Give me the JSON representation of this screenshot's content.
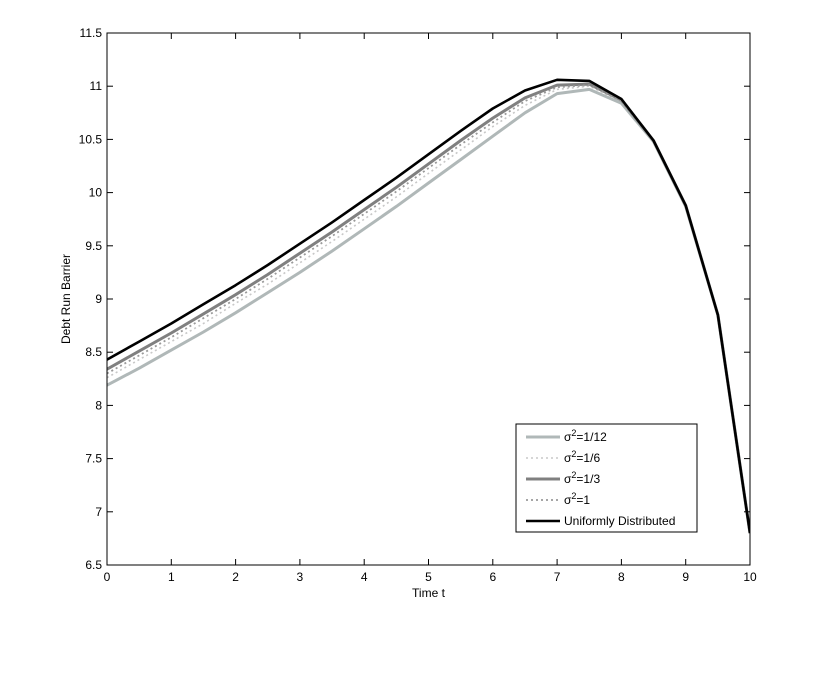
{
  "chart_data": {
    "type": "line",
    "title": "",
    "xlabel": "Time t",
    "ylabel": "Debt Run Barrier",
    "xlim": [
      0,
      10
    ],
    "ylim": [
      6.5,
      11.5
    ],
    "xticks": [
      "0",
      "1",
      "2",
      "3",
      "4",
      "5",
      "6",
      "7",
      "8",
      "9",
      "10"
    ],
    "yticks": [
      "6.5",
      "7",
      "7.5",
      "8",
      "8.5",
      "9",
      "9.5",
      "10",
      "10.5",
      "11",
      "11.5"
    ],
    "grid": false,
    "legend_position": "lower-right",
    "series": [
      {
        "name": "σ²=1/12",
        "legend_base": "σ",
        "legend_sup": "2",
        "legend_rest": "=1/12",
        "color": "#b0b8b8",
        "dash": "solid",
        "x": [
          0,
          0.5,
          1,
          1.5,
          2,
          2.5,
          3,
          3.5,
          4,
          4.5,
          5,
          5.5,
          6,
          6.5,
          7,
          7.5,
          8,
          8.5,
          9,
          9.5,
          10
        ],
        "y": [
          8.19,
          8.35,
          8.52,
          8.69,
          8.87,
          9.06,
          9.25,
          9.45,
          9.66,
          9.87,
          10.09,
          10.31,
          10.53,
          10.75,
          10.93,
          10.97,
          10.84,
          10.48,
          9.87,
          8.85,
          6.8
        ]
      },
      {
        "name": "σ²=1/6",
        "legend_base": "σ",
        "legend_sup": "2",
        "legend_rest": "=1/6",
        "color": "#c8c8c8",
        "dash": "dotted",
        "x": [
          0,
          0.5,
          1,
          1.5,
          2,
          2.5,
          3,
          3.5,
          4,
          4.5,
          5,
          5.5,
          6,
          6.5,
          7,
          7.5,
          8,
          8.5,
          9,
          9.5,
          10
        ],
        "y": [
          8.26,
          8.43,
          8.6,
          8.77,
          8.96,
          9.14,
          9.34,
          9.54,
          9.75,
          9.96,
          10.18,
          10.4,
          10.62,
          10.82,
          10.97,
          11.0,
          10.86,
          10.49,
          9.88,
          8.85,
          6.8
        ]
      },
      {
        "name": "σ²=1/3",
        "legend_base": "σ",
        "legend_sup": "2",
        "legend_rest": "=1/3",
        "color": "#808080",
        "dash": "solid",
        "x": [
          0,
          0.5,
          1,
          1.5,
          2,
          2.5,
          3,
          3.5,
          4,
          4.5,
          5,
          5.5,
          6,
          6.5,
          7,
          7.5,
          8,
          8.5,
          9,
          9.5,
          10
        ],
        "y": [
          8.34,
          8.51,
          8.68,
          8.86,
          9.04,
          9.23,
          9.43,
          9.63,
          9.84,
          10.05,
          10.27,
          10.49,
          10.7,
          10.89,
          11.01,
          11.02,
          10.87,
          10.49,
          9.88,
          8.85,
          6.8
        ]
      },
      {
        "name": "σ²=1",
        "legend_base": "σ",
        "legend_sup": "2",
        "legend_rest": "=1",
        "color": "#9a9a9a",
        "dash": "dotted",
        "x": [
          0,
          0.5,
          1,
          1.5,
          2,
          2.5,
          3,
          3.5,
          4,
          4.5,
          5,
          5.5,
          6,
          6.5,
          7,
          7.5,
          8,
          8.5,
          9,
          9.5,
          10
        ],
        "y": [
          8.3,
          8.47,
          8.64,
          8.82,
          9.0,
          9.19,
          9.39,
          9.59,
          9.8,
          10.01,
          10.23,
          10.45,
          10.66,
          10.86,
          10.99,
          11.01,
          10.86,
          10.49,
          9.88,
          8.85,
          6.8
        ]
      },
      {
        "name": "Uniformly Distributed",
        "legend_base": "Uniformly Distributed",
        "legend_sup": "",
        "legend_rest": "",
        "color": "#000000",
        "dash": "solid",
        "x": [
          0,
          0.5,
          1,
          1.5,
          2,
          2.5,
          3,
          3.5,
          4,
          4.5,
          5,
          5.5,
          6,
          6.5,
          7,
          7.5,
          8,
          8.5,
          9,
          9.5,
          10
        ],
        "y": [
          8.43,
          8.6,
          8.77,
          8.95,
          9.13,
          9.32,
          9.52,
          9.72,
          9.93,
          10.14,
          10.36,
          10.58,
          10.79,
          10.96,
          11.06,
          11.05,
          10.88,
          10.49,
          9.88,
          8.85,
          6.8
        ]
      }
    ]
  }
}
